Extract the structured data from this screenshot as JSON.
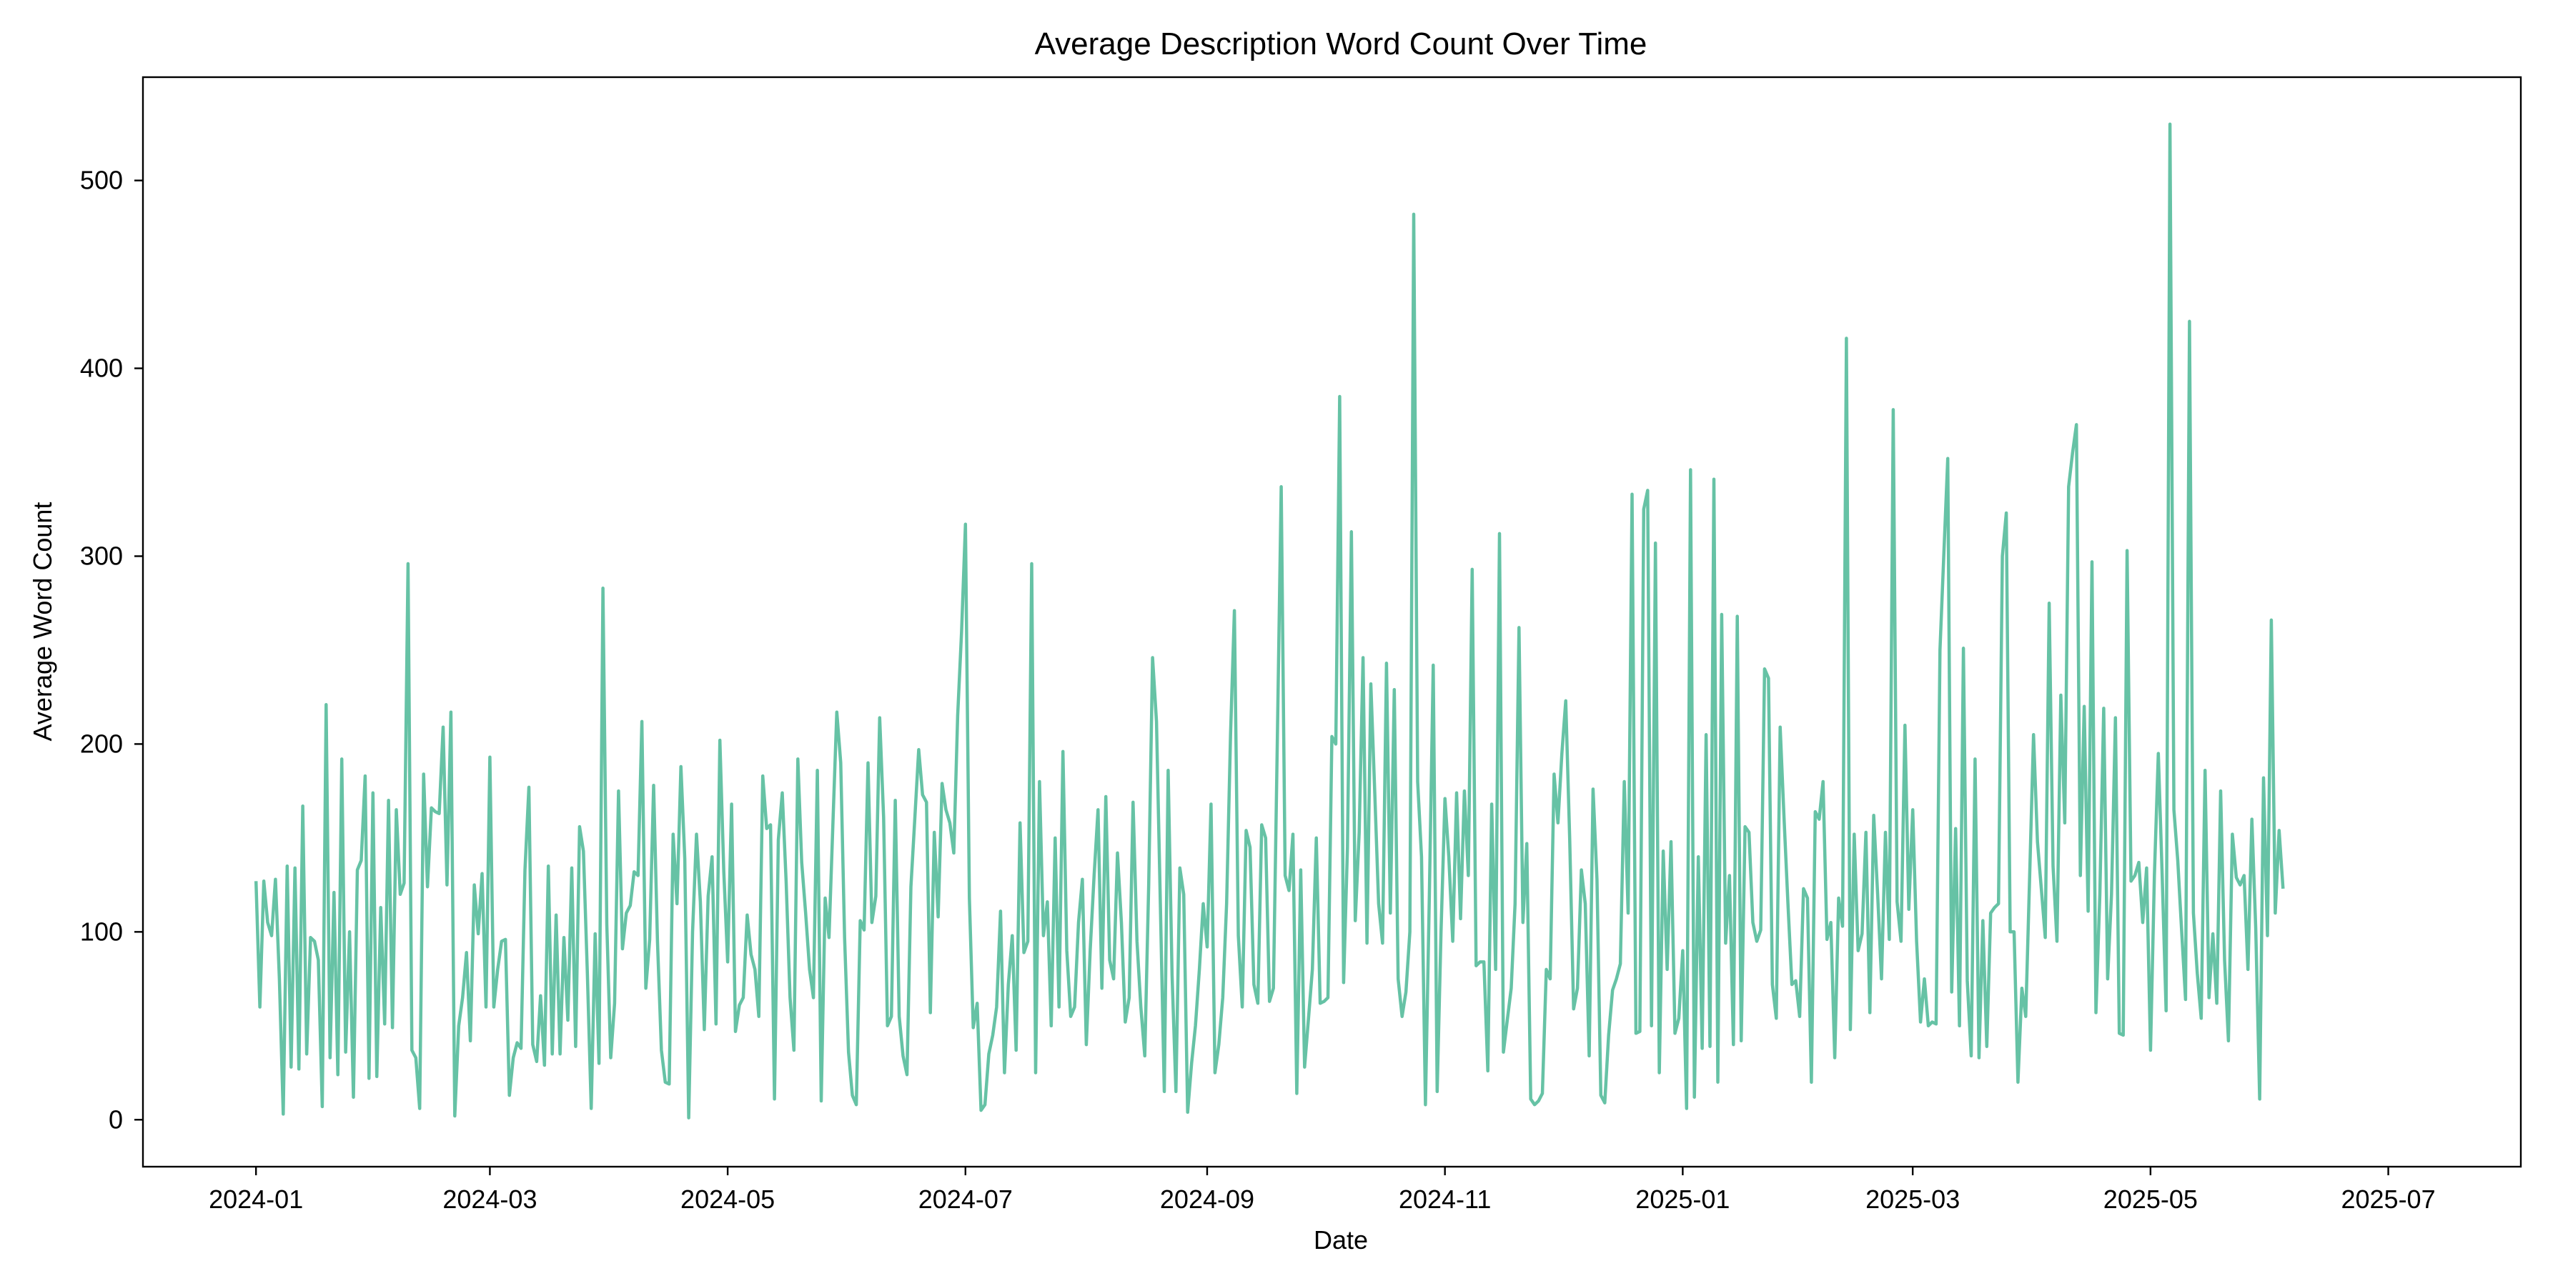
{
  "chart_data": {
    "type": "line",
    "title": "Average Description Word Count Over Time",
    "xlabel": "Date",
    "ylabel": "Average Word Count",
    "xlim": [
      "2023-12-03",
      "2025-08-04"
    ],
    "ylim": [
      -25,
      555
    ],
    "grid": false,
    "line_color": "#66c2a5",
    "x_ticks": [
      {
        "date": "2024-01-01",
        "label": "2024-01"
      },
      {
        "date": "2024-03-01",
        "label": "2024-03"
      },
      {
        "date": "2024-05-01",
        "label": "2024-05"
      },
      {
        "date": "2024-07-01",
        "label": "2024-07"
      },
      {
        "date": "2024-09-01",
        "label": "2024-09"
      },
      {
        "date": "2024-11-01",
        "label": "2024-11"
      },
      {
        "date": "2025-01-01",
        "label": "2025-01"
      },
      {
        "date": "2025-03-01",
        "label": "2025-03"
      },
      {
        "date": "2025-05-01",
        "label": "2025-05"
      },
      {
        "date": "2025-07-01",
        "label": "2025-07"
      }
    ],
    "y_ticks": [
      0,
      100,
      200,
      300,
      400,
      500
    ],
    "start_date": "2024-01-01",
    "series": [
      {
        "values": [
          127,
          60,
          127,
          105,
          98,
          128,
          75,
          3,
          135,
          28,
          134,
          27,
          167,
          35,
          97,
          95,
          85,
          7,
          221,
          33,
          121,
          24,
          192,
          36,
          100,
          12,
          133,
          138,
          183,
          22,
          174,
          23,
          113,
          51,
          170,
          49,
          165,
          120,
          126,
          296,
          37,
          33,
          6,
          184,
          124,
          166,
          164,
          163,
          209,
          125,
          217,
          2,
          50,
          65,
          89,
          42,
          125,
          99,
          131,
          60,
          193,
          60,
          80,
          95,
          96,
          13,
          33,
          41,
          38,
          133,
          177,
          40,
          31,
          66,
          29,
          135,
          35,
          109,
          35,
          97,
          53,
          134,
          39,
          156,
          143,
          78,
          6,
          99,
          30,
          283,
          104,
          33,
          62,
          175,
          91,
          110,
          114,
          132,
          130,
          212,
          70,
          96,
          178,
          95,
          37,
          20,
          19,
          152,
          115,
          188,
          139,
          1,
          100,
          152,
          116,
          48,
          119,
          140,
          51,
          202,
          132,
          84,
          168,
          47,
          61,
          65,
          109,
          88,
          80,
          55,
          183,
          155,
          157,
          11,
          149,
          174,
          127,
          65,
          37,
          192,
          137,
          110,
          80,
          65,
          186,
          10,
          118,
          97,
          158,
          217,
          190,
          97,
          36,
          13,
          8,
          106,
          101,
          190,
          105,
          119,
          214,
          161,
          50,
          55,
          170,
          55,
          34,
          24,
          124,
          160,
          197,
          173,
          169,
          57,
          153,
          108,
          179,
          165,
          158,
          142,
          215,
          260,
          317,
          118,
          49,
          62,
          5,
          8,
          35,
          45,
          60,
          111,
          25,
          72,
          98,
          37,
          158,
          89,
          95,
          296,
          25,
          180,
          98,
          116,
          50,
          150,
          60,
          196,
          90,
          55,
          60,
          105,
          128,
          40,
          90,
          130,
          165,
          70,
          172,
          85,
          75,
          142,
          105,
          52,
          65,
          169,
          95,
          60,
          34,
          125,
          246,
          212,
          115,
          15,
          186,
          77,
          15,
          134,
          120,
          4,
          30,
          50,
          80,
          115,
          92,
          168,
          25,
          40,
          65,
          115,
          205,
          271,
          98,
          60,
          154,
          145,
          72,
          62,
          157,
          150,
          63,
          70,
          200,
          337,
          130,
          122,
          152,
          14,
          133,
          28,
          54,
          80,
          150,
          62,
          63,
          65,
          204,
          200,
          385,
          73,
          145,
          313,
          106,
          153,
          246,
          94,
          232,
          174,
          115,
          94,
          243,
          110,
          229,
          75,
          55,
          68,
          100,
          482,
          180,
          140,
          8,
          120,
          242,
          15,
          100,
          171,
          140,
          95,
          174,
          107,
          175,
          130,
          293,
          82,
          84,
          84,
          26,
          168,
          80,
          312,
          36,
          53,
          70,
          115,
          262,
          105,
          147,
          11,
          8,
          10,
          14,
          80,
          75,
          184,
          158,
          195,
          223,
          150,
          59,
          70,
          133,
          115,
          34,
          176,
          128,
          13,
          9,
          45,
          69,
          75,
          83,
          180,
          110,
          333,
          46,
          47,
          325,
          335,
          50,
          307,
          25,
          143,
          80,
          148,
          46,
          54,
          90,
          6,
          346,
          12,
          140,
          38,
          205,
          39,
          341,
          20,
          269,
          94,
          130,
          40,
          268,
          42,
          156,
          153,
          105,
          95,
          101,
          240,
          235,
          72,
          54,
          209,
          160,
          115,
          72,
          74,
          55,
          123,
          118,
          20,
          164,
          160,
          180,
          96,
          105,
          33,
          118,
          103,
          416,
          48,
          152,
          90,
          99,
          153,
          57,
          162,
          120,
          75,
          153,
          96,
          378,
          116,
          95,
          210,
          112,
          165,
          95,
          52,
          75,
          50,
          52,
          51,
          250,
          302,
          352,
          68,
          155,
          50,
          251,
          74,
          34,
          192,
          33,
          106,
          39,
          110,
          113,
          115,
          300,
          323,
          100,
          100,
          20,
          70,
          55,
          130,
          205,
          148,
          123,
          97,
          275,
          135,
          95,
          226,
          158,
          337,
          355,
          370,
          130,
          220,
          111,
          297,
          57,
          120,
          219,
          75,
          120,
          214,
          46,
          45,
          303,
          127,
          130,
          137,
          105,
          134,
          37,
          130,
          195,
          130,
          58,
          530,
          165,
          138,
          100,
          64,
          425,
          110,
          78,
          54,
          186,
          65,
          99,
          62,
          175,
          85,
          42,
          152,
          129,
          125,
          130,
          80,
          160,
          102,
          11,
          182,
          98,
          266,
          110,
          154,
          123
        ]
      }
    ]
  }
}
